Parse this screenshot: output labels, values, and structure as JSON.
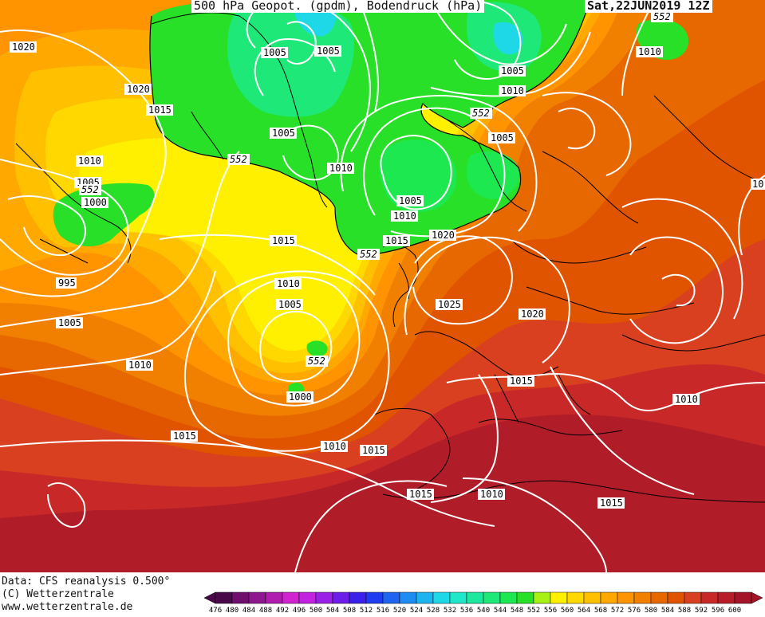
{
  "header": {
    "title": "500 hPa Geopot. (gpdm), Bodendruck (hPa)",
    "datetime": "Sat,22JUN2019 12Z"
  },
  "credits": {
    "data": "Data: CFS reanalysis 0.500°",
    "copyright": "(C) Wetterzentrale",
    "website": "www.wetterzentrale.de"
  },
  "legend": {
    "levels": [
      "476",
      "480",
      "484",
      "488",
      "492",
      "496",
      "500",
      "504",
      "508",
      "512",
      "516",
      "520",
      "524",
      "528",
      "532",
      "536",
      "540",
      "544",
      "548",
      "552",
      "556",
      "560",
      "564",
      "568",
      "572",
      "576",
      "580",
      "584",
      "588",
      "592",
      "596",
      "600"
    ],
    "colors": [
      "#4a0a4a",
      "#6e0f6e",
      "#8e168e",
      "#b01cb0",
      "#d024d0",
      "#c022e0",
      "#9a20e8",
      "#6a1ee8",
      "#3a22e8",
      "#1f3cf0",
      "#1e64f0",
      "#1e8cf0",
      "#1eb4f0",
      "#1ed8e8",
      "#1ee8c8",
      "#1ee8a0",
      "#1ee878",
      "#1ee850",
      "#28e028",
      "#a8f014",
      "#fff000",
      "#ffd800",
      "#ffc000",
      "#ffa800",
      "#ff9400",
      "#f28000",
      "#e86800",
      "#e05400",
      "#d84020",
      "#c82828",
      "#b81c28",
      "#a41428"
    ]
  },
  "isobar_labels": [
    "1020",
    "1005",
    "1020",
    "1015",
    "1010",
    "1005",
    "1000",
    "995",
    "1005",
    "1010",
    "1015",
    "1000",
    "1005",
    "1005",
    "1010",
    "1015",
    "1005",
    "1010",
    "1005",
    "1010",
    "1015",
    "1010",
    "1005",
    "1015",
    "1010",
    "1005",
    "1000",
    "1020",
    "1025",
    "1020",
    "1015",
    "1015",
    "1010",
    "1010",
    "1015",
    "1015",
    "1010",
    "1015",
    "10"
  ],
  "geopotential_labels": [
    "552",
    "552",
    "552",
    "552",
    "552",
    "552"
  ]
}
